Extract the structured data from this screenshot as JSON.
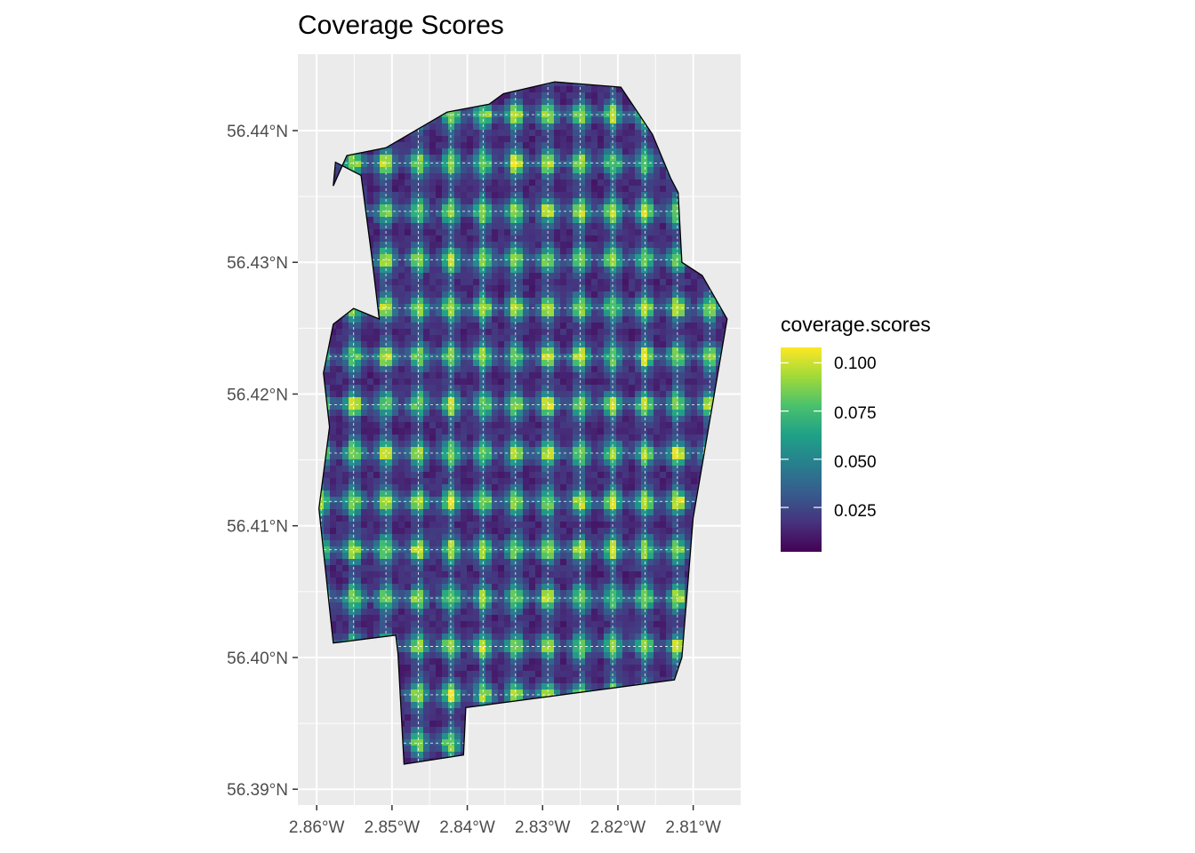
{
  "title": "Coverage Scores",
  "legend": {
    "title": "coverage.scores",
    "labels": [
      "0.100",
      "0.075",
      "0.050",
      "0.025"
    ],
    "breaks": [
      0.1,
      0.075,
      0.05,
      0.025
    ],
    "range": [
      0.002,
      0.108
    ],
    "colors": [
      "#440154",
      "#46327e",
      "#365c8d",
      "#277f8e",
      "#1fa187",
      "#4ac16d",
      "#a0da39",
      "#fde725"
    ]
  },
  "chart_data": {
    "type": "heatmap",
    "xlim": [
      -2.8625,
      -2.8037
    ],
    "ylim": [
      56.3888,
      56.4458
    ],
    "x_ticks": [
      -2.86,
      -2.85,
      -2.84,
      -2.83,
      -2.82,
      -2.81
    ],
    "x_tick_labels": [
      "2.86°W",
      "2.85°W",
      "2.84°W",
      "2.83°W",
      "2.82°W",
      "2.81°W"
    ],
    "y_ticks": [
      56.39,
      56.4,
      56.41,
      56.42,
      56.43,
      56.44
    ],
    "y_tick_labels": [
      "56.39°N",
      "56.40°N",
      "56.41°N",
      "56.42°N",
      "56.43°N",
      "56.44°N"
    ],
    "grid": true,
    "fill_variable": "coverage.scores",
    "value_range": [
      0.002,
      0.108
    ],
    "boundary_lonlat": [
      [
        -2.8284,
        56.4437
      ],
      [
        -2.8196,
        56.4433
      ],
      [
        -2.8154,
        56.4397
      ],
      [
        -2.813,
        56.4364
      ],
      [
        -2.812,
        56.4353
      ],
      [
        -2.8115,
        56.43
      ],
      [
        -2.8088,
        56.429
      ],
      [
        -2.8055,
        56.4257
      ],
      [
        -2.81,
        56.4106
      ],
      [
        -2.8115,
        56.4
      ],
      [
        -2.8125,
        56.3983
      ],
      [
        -2.8402,
        56.3962
      ],
      [
        -2.8405,
        56.3926
      ],
      [
        -2.8484,
        56.3919
      ],
      [
        -2.8492,
        56.4003
      ],
      [
        -2.8495,
        56.4017
      ],
      [
        -2.8578,
        56.4011
      ],
      [
        -2.8597,
        56.4113
      ],
      [
        -2.8583,
        56.4175
      ],
      [
        -2.8591,
        56.4216
      ],
      [
        -2.8578,
        56.4253
      ],
      [
        -2.8551,
        56.4265
      ],
      [
        -2.8517,
        56.4257
      ],
      [
        -2.8527,
        56.4305
      ],
      [
        -2.8541,
        56.4366
      ],
      [
        -2.8575,
        56.4376
      ],
      [
        -2.8578,
        56.4358
      ],
      [
        -2.856,
        56.4381
      ],
      [
        -2.8508,
        56.4387
      ],
      [
        -2.8427,
        56.4414
      ],
      [
        -2.8371,
        56.442
      ],
      [
        -2.8352,
        56.4428
      ]
    ],
    "hotspot_grid": {
      "lon_start": -2.8594,
      "lon_step": 0.0043,
      "lon_count": 13,
      "lat_start": 56.3935,
      "lat_step": 0.00367,
      "lat_count": 15,
      "peak_value": 0.1,
      "base_value": 0.02
    }
  }
}
